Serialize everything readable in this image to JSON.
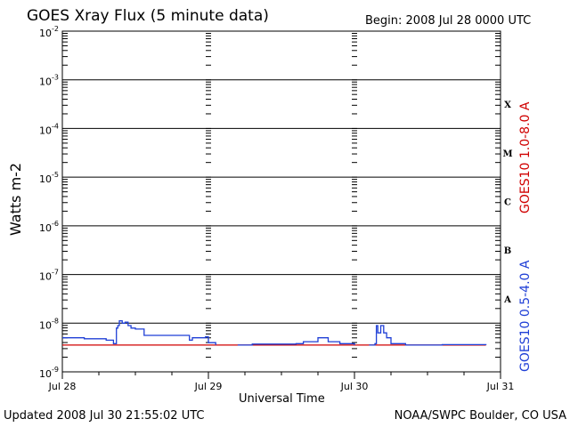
{
  "title": "GOES Xray Flux (5 minute data)",
  "begin": "Begin:  2008 Jul 28 0000 UTC",
  "updated": "Updated 2008 Jul 30 21:55:02 UTC",
  "credit": "NOAA/SWPC Boulder, CO USA",
  "colors": {
    "long": "#d00000",
    "short": "#1f3fd6"
  },
  "chart_data": {
    "type": "line",
    "title": "GOES Xray Flux (5 minute data)",
    "xlabel": "Universal Time",
    "ylabel": "Watts m-2",
    "xlim": [
      0,
      3
    ],
    "ylim_exp": [
      -9,
      -2
    ],
    "y_scale": "log",
    "grid": true,
    "x_tick_labels": [
      "Jul 28",
      "Jul 29",
      "Jul 30",
      "Jul 31"
    ],
    "y_tick_labels": [
      {
        "base": "10",
        "exp": "-2"
      },
      {
        "base": "10",
        "exp": "-3"
      },
      {
        "base": "10",
        "exp": "-4"
      },
      {
        "base": "10",
        "exp": "-5"
      },
      {
        "base": "10",
        "exp": "-6"
      },
      {
        "base": "10",
        "exp": "-7"
      },
      {
        "base": "10",
        "exp": "-8"
      },
      {
        "base": "10",
        "exp": "-9"
      }
    ],
    "flare_classes": [
      {
        "label": "X",
        "exp": -3.5
      },
      {
        "label": "M",
        "exp": -4.5
      },
      {
        "label": "C",
        "exp": -5.5
      },
      {
        "label": "B",
        "exp": -6.5
      },
      {
        "label": "A",
        "exp": -7.5
      }
    ],
    "series": [
      {
        "name": "GOES10 1.0-8.0 A",
        "color": "#d00000",
        "points": [
          [
            0,
            -8.45
          ],
          [
            2.0,
            -8.45
          ],
          [
            2.1,
            -8.45
          ],
          [
            2.9,
            -8.45
          ]
        ]
      },
      {
        "name": "GOES10 0.5-4.0 A",
        "color": "#1f3fd6",
        "points": [
          [
            0,
            -8.3
          ],
          [
            0.15,
            -8.32
          ],
          [
            0.3,
            -8.35
          ],
          [
            0.35,
            -8.42
          ],
          [
            0.37,
            -8.1
          ],
          [
            0.38,
            -8.05
          ],
          [
            0.39,
            -7.95
          ],
          [
            0.41,
            -8.0
          ],
          [
            0.43,
            -7.98
          ],
          [
            0.45,
            -8.05
          ],
          [
            0.47,
            -8.1
          ],
          [
            0.5,
            -8.12
          ],
          [
            0.55,
            -8.12
          ],
          [
            0.56,
            -8.25
          ],
          [
            0.6,
            -8.25
          ],
          [
            0.85,
            -8.25
          ],
          [
            0.87,
            -8.35
          ],
          [
            0.89,
            -8.3
          ],
          [
            0.95,
            -8.3
          ],
          [
            0.98,
            -8.28
          ],
          [
            1.0,
            -8.4
          ],
          [
            1.05,
            -8.45
          ],
          [
            1.2,
            -8.45
          ],
          [
            1.3,
            -8.43
          ],
          [
            1.5,
            -8.43
          ],
          [
            1.6,
            -8.42
          ],
          [
            1.65,
            -8.38
          ],
          [
            1.75,
            -8.3
          ],
          [
            1.82,
            -8.38
          ],
          [
            1.9,
            -8.42
          ],
          [
            2.0,
            -8.45
          ],
          [
            2.1,
            -8.45
          ],
          [
            2.14,
            -8.42
          ],
          [
            2.15,
            -8.05
          ],
          [
            2.16,
            -8.2
          ],
          [
            2.18,
            -8.05
          ],
          [
            2.2,
            -8.2
          ],
          [
            2.22,
            -8.3
          ],
          [
            2.25,
            -8.42
          ],
          [
            2.35,
            -8.45
          ],
          [
            2.6,
            -8.44
          ],
          [
            2.7,
            -8.44
          ],
          [
            2.9,
            -8.45
          ]
        ],
        "gaps": [
          [
            1.05,
            1.2
          ],
          [
            2.0,
            2.1
          ]
        ]
      }
    ]
  }
}
